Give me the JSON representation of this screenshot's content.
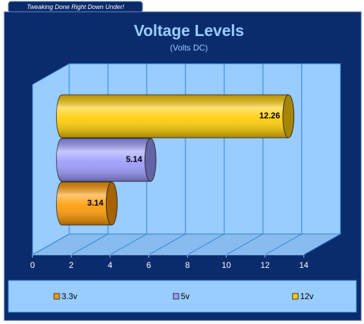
{
  "banner": "Tweaking Done Right Down Under!",
  "chart_data": {
    "type": "bar",
    "orientation": "horizontal",
    "title": "Voltage Levels",
    "subtitle": "(Volts DC)",
    "series": [
      {
        "name": "3.3v",
        "color": "#ff9900",
        "values": [
          3.14
        ]
      },
      {
        "name": "5v",
        "color": "#9999ff",
        "values": [
          5.14
        ]
      },
      {
        "name": "12v",
        "color": "#ffcc00",
        "values": [
          12.26
        ]
      }
    ],
    "xlim": [
      0,
      14
    ],
    "xticks": [
      0,
      2,
      4,
      6,
      8,
      10,
      12,
      14
    ],
    "grid": true,
    "legend": "bottom"
  }
}
